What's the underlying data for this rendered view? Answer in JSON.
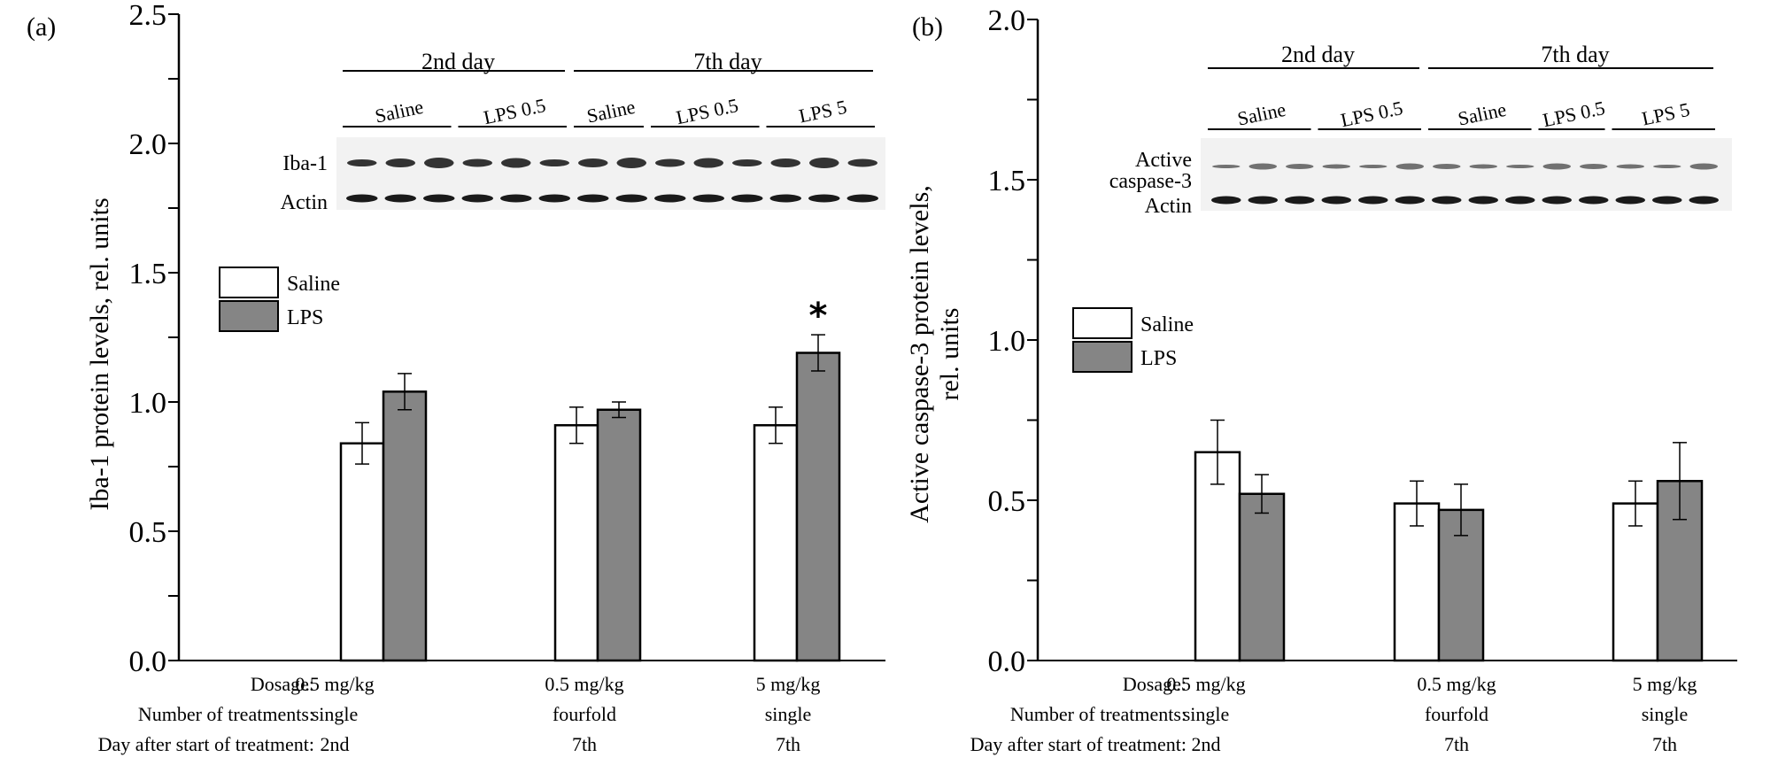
{
  "colors": {
    "saline": "#ffffff",
    "lps": "#858585",
    "stroke": "#000000"
  },
  "legend": [
    {
      "key": "saline",
      "label": "Saline"
    },
    {
      "key": "lps",
      "label": "LPS"
    }
  ],
  "x_table": {
    "row_labels": [
      "Dosage:",
      "Number of treatments:",
      "Day after start of treatment:"
    ],
    "columns": [
      [
        "0.5 mg/kg",
        "single",
        "2nd"
      ],
      [
        "0.5 mg/kg",
        "fourfold",
        "7th"
      ],
      [
        "5 mg/kg",
        "single",
        "7th"
      ]
    ]
  },
  "chart_data": [
    {
      "type": "bar",
      "panel": "(a)",
      "title": "",
      "ylabel": "Iba-1 protein levels, rel. units",
      "xlabel": "",
      "ylim": [
        0,
        2.5
      ],
      "yticks": [
        "0.0",
        "0.5",
        "1.0",
        "1.5",
        "2.0",
        "2.5"
      ],
      "ytick_values": [
        0,
        0.5,
        1.0,
        1.5,
        2.0,
        2.5
      ],
      "minor_tick_step": 0.25,
      "categories": [
        "0.5 mg/kg, single, 2nd",
        "0.5 mg/kg, fourfold, 7th",
        "5 mg/kg, single, 7th"
      ],
      "series": [
        {
          "name": "Saline",
          "values": [
            0.84,
            0.91,
            0.91
          ],
          "err": [
            0.08,
            0.07,
            0.07
          ]
        },
        {
          "name": "LPS",
          "values": [
            1.04,
            0.97,
            1.19
          ],
          "err": [
            0.07,
            0.03,
            0.07
          ]
        }
      ],
      "annotations": [
        {
          "category": 2,
          "series": "LPS",
          "text": "*"
        }
      ],
      "legend_position": "top-left",
      "blot": {
        "day_groups": [
          {
            "label": "2nd day",
            "lanes": 6
          },
          {
            "label": "7th day",
            "lanes": 8
          }
        ],
        "treatment_groups": [
          {
            "label": "Saline",
            "lanes": 3
          },
          {
            "label": "LPS 0.5",
            "lanes": 3
          },
          {
            "label": "Saline",
            "lanes": 2
          },
          {
            "label": "LPS 0.5",
            "lanes": 3
          },
          {
            "label": "LPS 5",
            "lanes": 3
          }
        ],
        "rows": [
          "Iba-1",
          "Actin"
        ]
      }
    },
    {
      "type": "bar",
      "panel": "(b)",
      "title": "",
      "ylabel": "Active caspase-3 protein levels,",
      "ylabel2": "rel. units",
      "xlabel": "",
      "ylim": [
        0,
        2.0
      ],
      "yticks": [
        "0.0",
        "0.5",
        "1.0",
        "1.5",
        "2.0"
      ],
      "ytick_values": [
        0,
        0.5,
        1.0,
        1.5,
        2.0
      ],
      "minor_tick_step": 0.25,
      "categories": [
        "0.5 mg/kg, single, 2nd",
        "0.5 mg/kg, fourfold, 7th",
        "5 mg/kg, single, 7th"
      ],
      "series": [
        {
          "name": "Saline",
          "values": [
            0.65,
            0.49,
            0.49
          ],
          "err": [
            0.1,
            0.07,
            0.07
          ]
        },
        {
          "name": "LPS",
          "values": [
            0.52,
            0.47,
            0.56
          ],
          "err": [
            0.06,
            0.08,
            0.12
          ]
        }
      ],
      "annotations": [],
      "legend_position": "top-left",
      "blot": {
        "day_groups": [
          {
            "label": "2nd day",
            "lanes": 6
          },
          {
            "label": "7th day",
            "lanes": 8
          }
        ],
        "treatment_groups": [
          {
            "label": "Saline",
            "lanes": 3
          },
          {
            "label": "LPS 0.5",
            "lanes": 3
          },
          {
            "label": "Saline",
            "lanes": 3
          },
          {
            "label": "LPS 0.5",
            "lanes": 2
          },
          {
            "label": "LPS 5",
            "lanes": 3
          }
        ],
        "rows": [
          "Active",
          "caspase-3",
          "Actin"
        ]
      }
    }
  ]
}
